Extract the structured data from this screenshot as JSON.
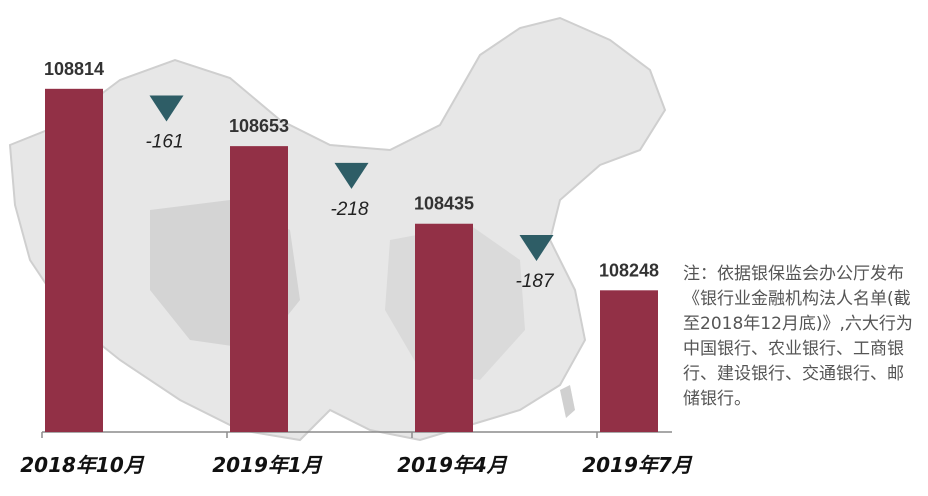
{
  "chart_data": {
    "type": "bar",
    "categories": [
      "2018年10月",
      "2019年1月",
      "2019年4月",
      "2019年7月"
    ],
    "values": [
      108814,
      108653,
      108435,
      108248
    ],
    "changes": [
      "-161",
      "-218",
      "-187"
    ],
    "title": "",
    "xlabel": "",
    "ylabel": "",
    "ylim": [
      107850,
      108850
    ],
    "grid": false,
    "bar_color": "#923046",
    "marker_color": "#2e5d66"
  },
  "note": "注：依据银保监会办公厅发布《银行业金融机构法人名单(截至2018年12月底)》,六大行为中国银行、农业银行、工商银行、建设银行、交通银行、邮储银行。"
}
